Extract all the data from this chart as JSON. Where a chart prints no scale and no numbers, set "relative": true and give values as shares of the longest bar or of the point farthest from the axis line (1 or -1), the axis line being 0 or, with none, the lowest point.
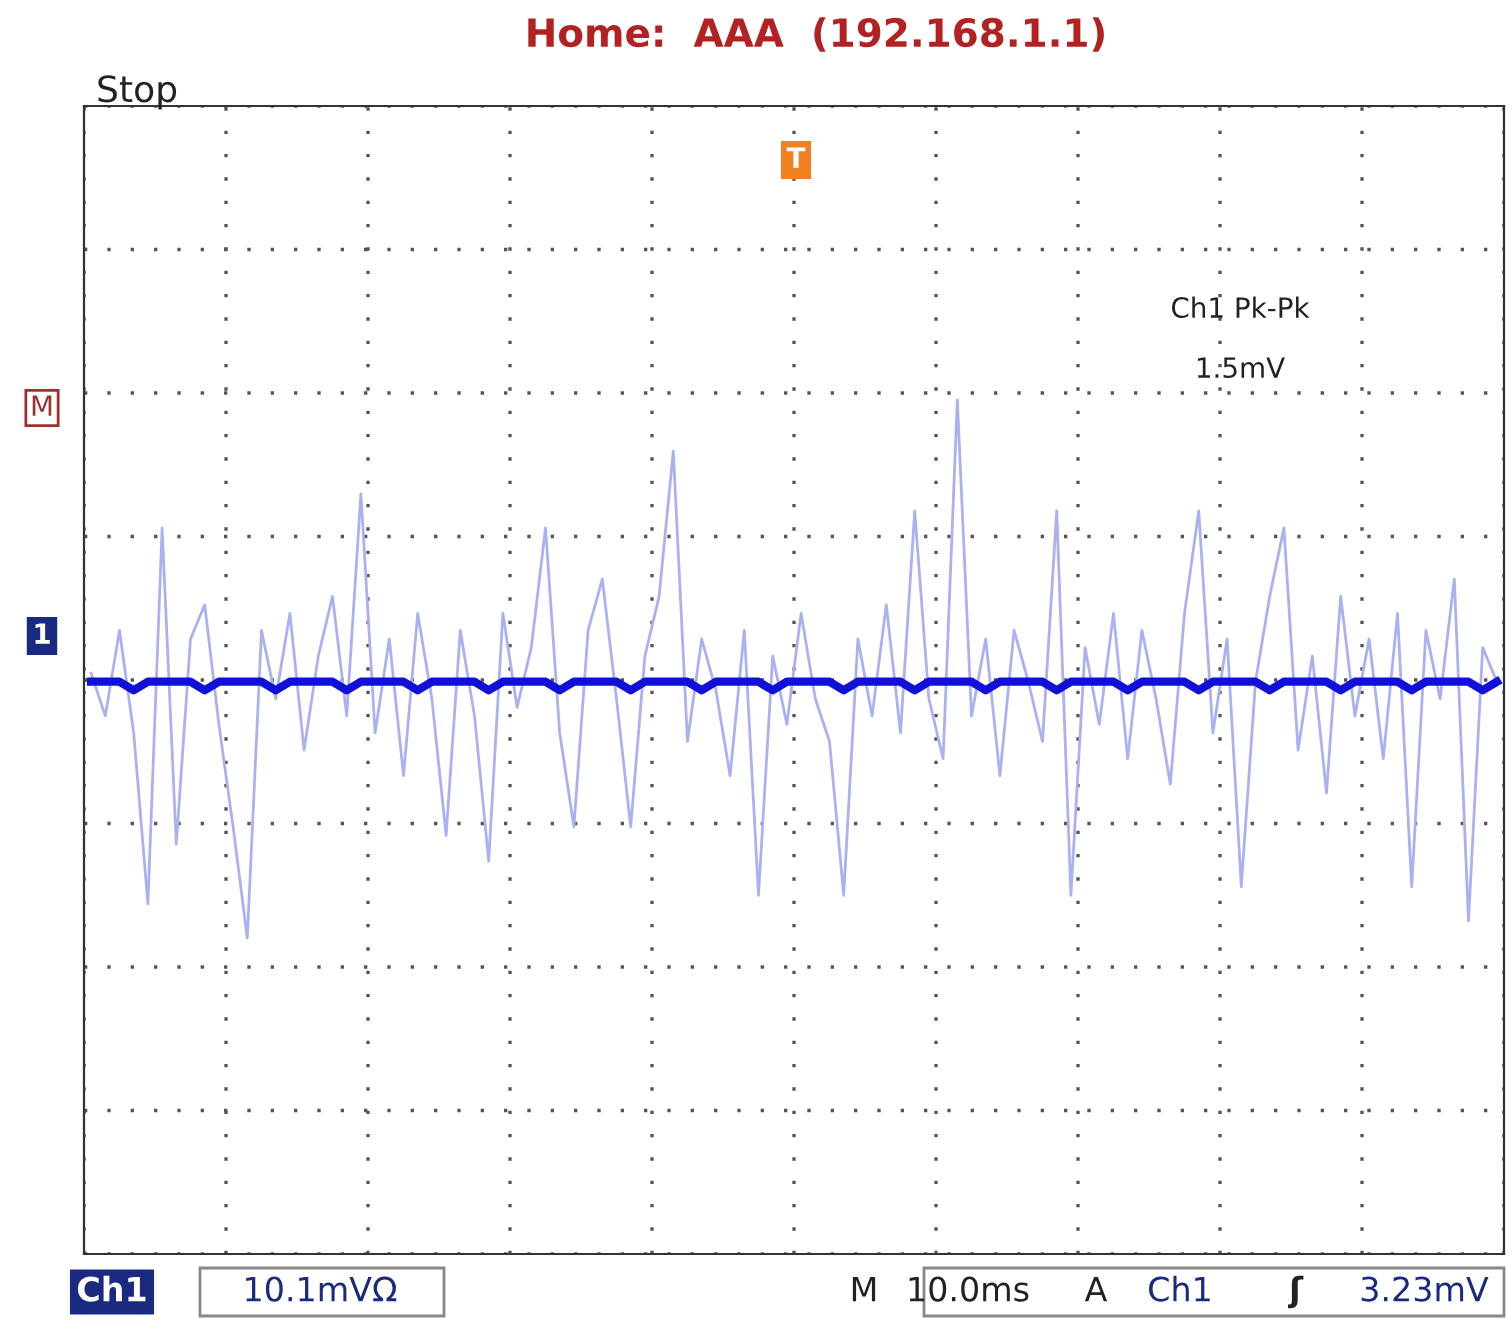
{
  "chart_data": {
    "type": "line",
    "relative": true,
    "grid": true,
    "tick_labels": false,
    "categories": [
      null,
      null,
      null,
      null,
      null,
      null,
      null,
      null,
      null,
      null,
      null,
      null,
      null,
      null,
      null,
      null,
      null,
      null,
      null,
      null,
      null,
      null,
      null,
      null,
      null,
      null,
      null,
      null,
      null,
      null,
      null,
      null,
      null,
      null,
      null,
      null,
      null,
      null,
      null,
      null,
      null,
      null,
      null,
      null,
      null,
      null,
      null,
      null,
      null,
      null,
      null,
      null,
      null,
      null,
      null,
      null,
      null,
      null,
      null,
      null,
      null,
      null,
      null,
      null,
      null,
      null,
      null,
      null,
      null,
      null,
      null,
      null,
      null,
      null,
      null,
      null,
      null,
      null,
      null,
      null,
      null,
      null,
      null,
      null,
      null,
      null,
      null,
      null,
      null,
      null,
      null,
      null,
      null,
      null,
      null,
      null,
      null,
      null,
      null,
      null
    ],
    "series": [
      {
        "color": "#a9b1f2",
        "values": [
          0.68,
          0.63,
          0.73,
          0.61,
          0.41,
          0.85,
          0.48,
          0.72,
          0.76,
          0.62,
          0.5,
          0.37,
          0.73,
          0.65,
          0.75,
          0.59,
          0.7,
          0.77,
          0.63,
          0.89,
          0.61,
          0.72,
          0.56,
          0.75,
          0.65,
          0.49,
          0.73,
          0.63,
          0.46,
          0.75,
          0.64,
          0.71,
          0.85,
          0.61,
          0.5,
          0.73,
          0.79,
          0.65,
          0.5,
          0.7,
          0.77,
          0.94,
          0.6,
          0.72,
          0.66,
          0.56,
          0.73,
          0.42,
          0.7,
          0.62,
          0.75,
          0.65,
          0.6,
          0.42,
          0.72,
          0.63,
          0.76,
          0.61,
          0.87,
          0.65,
          0.58,
          1.0,
          0.63,
          0.72,
          0.56,
          0.73,
          0.67,
          0.6,
          0.87,
          0.42,
          0.71,
          0.62,
          0.75,
          0.58,
          0.73,
          0.65,
          0.55,
          0.75,
          0.87,
          0.61,
          0.72,
          0.43,
          0.67,
          0.77,
          0.85,
          0.59,
          0.7,
          0.54,
          0.77,
          0.63,
          0.72,
          0.58,
          0.75,
          0.43,
          0.73,
          0.65,
          0.79,
          0.39,
          0.71,
          0.67
        ]
      },
      {
        "color": "#1010d8",
        "values": [
          0.67,
          0.67,
          0.67,
          0.66,
          0.67,
          0.67,
          0.67,
          0.67,
          0.66,
          0.67,
          0.67,
          0.67,
          0.67,
          0.66,
          0.67,
          0.67,
          0.67,
          0.67,
          0.66,
          0.67,
          0.67,
          0.67,
          0.67,
          0.66,
          0.67,
          0.67,
          0.67,
          0.67,
          0.66,
          0.67,
          0.67,
          0.67,
          0.67,
          0.66,
          0.67,
          0.67,
          0.67,
          0.67,
          0.66,
          0.67,
          0.67,
          0.67,
          0.67,
          0.66,
          0.67,
          0.67,
          0.67,
          0.67,
          0.66,
          0.67,
          0.67,
          0.67,
          0.67,
          0.66,
          0.67,
          0.67,
          0.67,
          0.67,
          0.66,
          0.67,
          0.67,
          0.67,
          0.67,
          0.66,
          0.67,
          0.67,
          0.67,
          0.67,
          0.66,
          0.67,
          0.67,
          0.67,
          0.67,
          0.66,
          0.67,
          0.67,
          0.67,
          0.67,
          0.66,
          0.67,
          0.67,
          0.67,
          0.67,
          0.66,
          0.67,
          0.67,
          0.67,
          0.67,
          0.66,
          0.67,
          0.67,
          0.67,
          0.67,
          0.66,
          0.67,
          0.67,
          0.67,
          0.67,
          0.66,
          0.67
        ]
      }
    ],
    "annotations": [
      "Stop",
      "Home:  AAA  (192.168.1.1)",
      "Ch1 Pk-Pk",
      "1.5mV",
      "M",
      "1",
      "T",
      "Ch1",
      "10.1mVΩ",
      "M",
      "10.0ms",
      "A",
      "Ch1",
      "ʃ",
      "3.23mV"
    ]
  }
}
